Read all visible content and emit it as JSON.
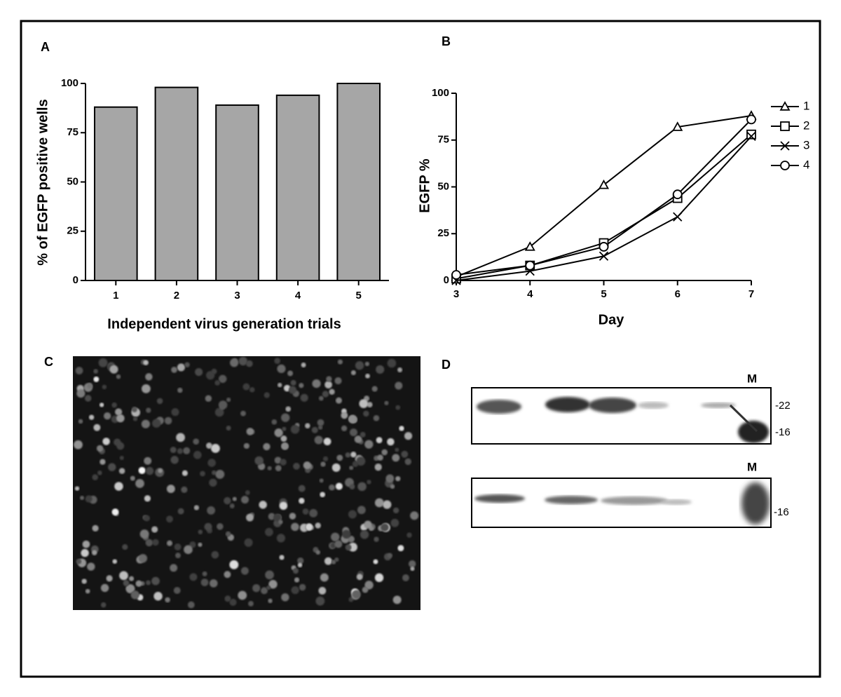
{
  "chart_data": [
    {
      "type": "bar",
      "panel_label": "A",
      "y_label": "% of EGFP positive wells",
      "x_label": "Independent virus generation trials",
      "categories": [
        "1",
        "2",
        "3",
        "4",
        "5"
      ],
      "values": [
        88,
        98,
        89,
        94,
        100
      ],
      "color": "#a6a6a6",
      "ylim": [
        0,
        100
      ],
      "yticks": [
        0,
        25,
        50,
        75,
        100
      ]
    },
    {
      "type": "line",
      "panel_label": "B",
      "y_label": "EGFP %",
      "x_label": "Day",
      "x": [
        3,
        4,
        5,
        6,
        7
      ],
      "xlim": [
        3,
        7
      ],
      "xticks": [
        3,
        4,
        5,
        6,
        7
      ],
      "ylim": [
        0,
        100
      ],
      "yticks": [
        0,
        25,
        50,
        75,
        100
      ],
      "series": [
        {
          "name": "1",
          "color": "#000000",
          "marker": "triangle",
          "values": [
            2,
            18,
            51,
            82,
            88
          ]
        },
        {
          "name": "2",
          "color": "#000000",
          "marker": "square",
          "values": [
            1,
            8,
            20,
            44,
            78
          ]
        },
        {
          "name": "3",
          "color": "#000000",
          "marker": "x",
          "values": [
            0,
            5,
            13,
            34,
            77
          ]
        },
        {
          "name": "4",
          "color": "#000000",
          "marker": "circle",
          "values": [
            3,
            8,
            18,
            46,
            86
          ]
        }
      ]
    }
  ],
  "images": [
    {
      "panel_label": "C"
    },
    {
      "panel_label": "D",
      "blots": [
        {
          "marker": "M",
          "sizes": [
            "-22",
            "-16"
          ]
        },
        {
          "marker": "M",
          "sizes": [
            "-16"
          ]
        }
      ]
    }
  ]
}
